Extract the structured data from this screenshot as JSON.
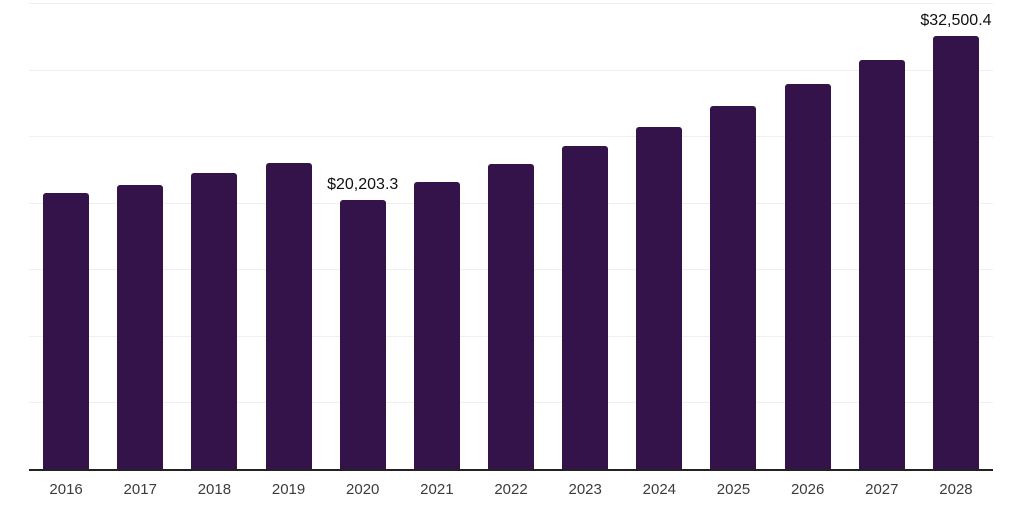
{
  "chart_data": {
    "type": "bar",
    "title": "",
    "xlabel": "",
    "ylabel": "",
    "categories": [
      "2016",
      "2017",
      "2018",
      "2019",
      "2020",
      "2021",
      "2022",
      "2023",
      "2024",
      "2025",
      "2026",
      "2027",
      "2028"
    ],
    "values": [
      20750,
      21350,
      22200,
      23000,
      20203.3,
      21550,
      22900,
      24250,
      25700,
      27250,
      28900,
      30700,
      32500.4
    ],
    "data_labels": [
      {
        "category": "2020",
        "text": "$20,203.3"
      },
      {
        "category": "2028",
        "text": "$32,500.4"
      }
    ],
    "ylim": [
      0,
      35000
    ],
    "gridline_step": 5000,
    "grid": "horizontal-only",
    "legend": "none",
    "colors": {
      "bar": "#331349",
      "gridline": "#efeef2",
      "axis_line": "#222222",
      "tick_label": "#3c3c3c",
      "data_label": "#111111",
      "background": "#ffffff"
    }
  }
}
